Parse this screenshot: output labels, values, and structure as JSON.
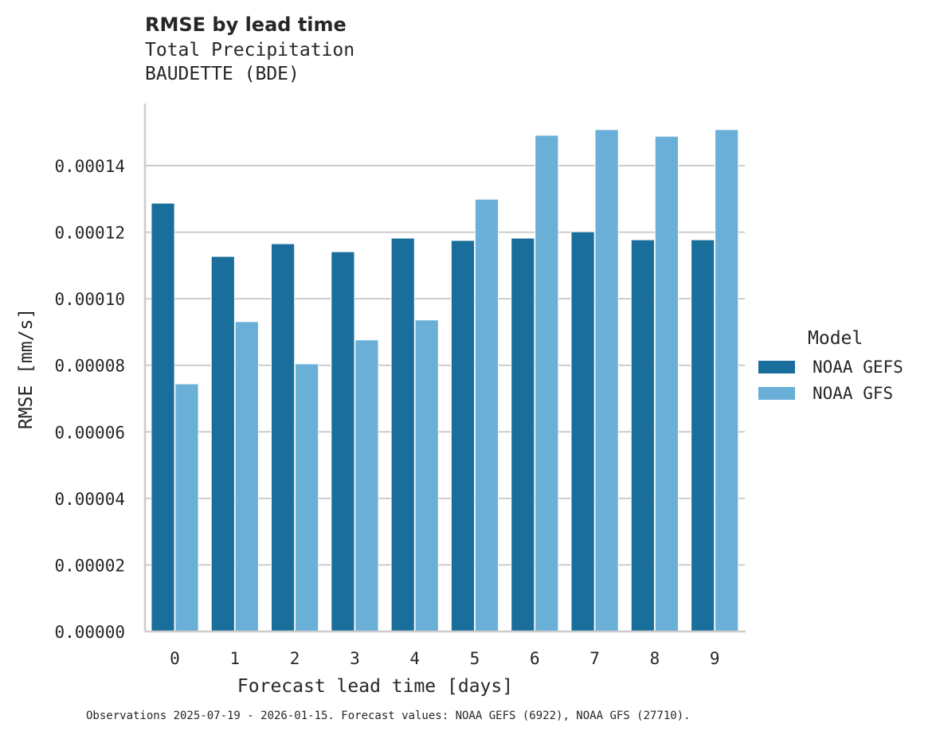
{
  "header": {
    "title": "RMSE by lead time",
    "subtitle_line1": "Total Precipitation",
    "subtitle_line2": "BAUDETTE (BDE)"
  },
  "legend": {
    "title": "Model",
    "items": [
      {
        "label": "NOAA GEFS",
        "color": "#1a6e9c"
      },
      {
        "label": "NOAA GFS",
        "color": "#69afd7"
      }
    ]
  },
  "footnote": "Observations 2025-07-19 - 2026-01-15. Forecast values: NOAA GEFS (6922), NOAA GFS (27710).",
  "chart_data": {
    "type": "bar",
    "title": "RMSE by lead time",
    "subtitle": "Total Precipitation — BAUDETTE (BDE)",
    "xlabel": "Forecast lead time [days]",
    "ylabel": "RMSE [mm/s]",
    "categories": [
      "0",
      "1",
      "2",
      "3",
      "4",
      "5",
      "6",
      "7",
      "8",
      "9"
    ],
    "series": [
      {
        "name": "NOAA GEFS",
        "color": "#1a6e9c",
        "values": [
          0.0001287,
          0.0001127,
          0.0001165,
          0.0001141,
          0.0001182,
          0.0001175,
          0.0001182,
          0.0001201,
          0.0001177,
          0.0001177
        ]
      },
      {
        "name": "NOAA GFS",
        "color": "#69afd7",
        "values": [
          7.44e-05,
          9.31e-05,
          8.04e-05,
          8.76e-05,
          9.36e-05,
          0.0001299,
          0.0001491,
          0.0001508,
          0.0001488,
          0.0001508
        ]
      }
    ],
    "yticks": [
      "0.00000",
      "0.00002",
      "0.00004",
      "0.00006",
      "0.00008",
      "0.00010",
      "0.00012",
      "0.00014"
    ],
    "ylim": [
      0,
      0.0001587
    ],
    "grid": "horizontal",
    "legend_position": "right"
  }
}
